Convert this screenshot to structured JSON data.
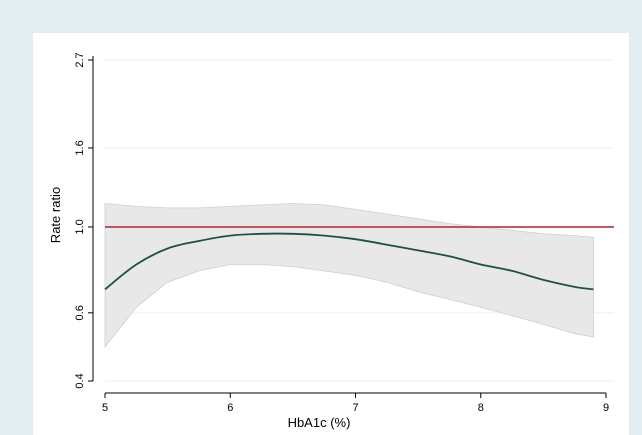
{
  "chart_data": {
    "type": "line",
    "title": "",
    "xlabel": "HbA1c (%)",
    "ylabel": "Rate ratio",
    "x_ticks": [
      "5",
      "6",
      "7",
      "8",
      "9"
    ],
    "y_ticks": [
      "0.4",
      "0.6",
      "1.0",
      "1.6",
      "2.7"
    ],
    "y_scale": "log",
    "xlim": [
      5,
      9
    ],
    "ylim": [
      0.4,
      2.7
    ],
    "grid": "horizontal",
    "reference_line": {
      "y": 1.0,
      "color": "#b2222e"
    },
    "colors": {
      "line": "#1f4f4a",
      "band": "#e8e8e8",
      "band_edge": "#cfcfcf",
      "reference": "#b2222e"
    },
    "series": [
      {
        "x": [
          5.0,
          5.25,
          5.5,
          5.75,
          6.0,
          6.25,
          6.5,
          6.75,
          7.0,
          7.25,
          7.5,
          7.75,
          8.0,
          8.25,
          8.5,
          8.75,
          8.9
        ],
        "values": [
          0.69,
          0.8,
          0.88,
          0.92,
          0.95,
          0.96,
          0.96,
          0.95,
          0.93,
          0.9,
          0.87,
          0.84,
          0.8,
          0.77,
          0.73,
          0.7,
          0.69
        ],
        "lower": [
          0.49,
          0.62,
          0.72,
          0.77,
          0.8,
          0.8,
          0.79,
          0.77,
          0.75,
          0.72,
          0.68,
          0.65,
          0.62,
          0.59,
          0.56,
          0.53,
          0.52
        ],
        "upper": [
          1.15,
          1.13,
          1.12,
          1.12,
          1.13,
          1.14,
          1.15,
          1.14,
          1.11,
          1.08,
          1.05,
          1.02,
          1.0,
          0.98,
          0.96,
          0.95,
          0.94
        ]
      }
    ]
  }
}
